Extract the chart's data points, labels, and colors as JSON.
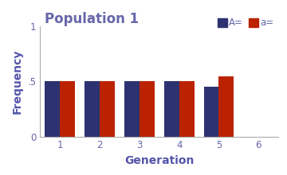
{
  "title": "Population 1",
  "xlabel": "Generation",
  "ylabel": "Frequency",
  "title_color": "#6666aa",
  "axis_label_color": "#5555aa",
  "tick_label_color": "#6666aa",
  "bar_color_A": "#2d3270",
  "bar_color_a": "#bb2200",
  "legend_label_A": "A=",
  "legend_label_a": "a=",
  "generations": [
    1,
    2,
    3,
    4,
    5
  ],
  "A_values": [
    0.5,
    0.5,
    0.5,
    0.5,
    0.455
  ],
  "a_values": [
    0.5,
    0.5,
    0.5,
    0.5,
    0.545
  ],
  "ylim": [
    0,
    1
  ],
  "yticks": [
    0,
    0.5,
    1
  ],
  "ytick_labels": [
    "0",
    ".5",
    "1"
  ],
  "xticks": [
    1,
    2,
    3,
    4,
    5,
    6
  ],
  "bar_width": 0.38,
  "background_color": "#ffffff",
  "axes_background": "#ffffff"
}
